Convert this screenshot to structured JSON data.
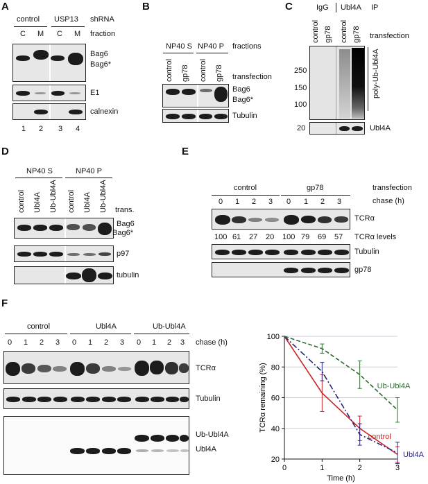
{
  "panelA": {
    "label": "A",
    "groups": [
      "control",
      "USP13"
    ],
    "groups_caption": "shRNA",
    "fractions": [
      "C",
      "M",
      "C",
      "M"
    ],
    "fractions_caption": "fraction",
    "bands": [
      "Bag6",
      "Bag6*"
    ],
    "rows": [
      "E1",
      "calnexin"
    ],
    "lanes": [
      "1",
      "2",
      "3",
      "4"
    ]
  },
  "panelB": {
    "label": "B",
    "groups": [
      "NP40 S",
      "NP40 P"
    ],
    "groups_caption": "fractions",
    "lanes": [
      "control",
      "gp78",
      "control",
      "gp78"
    ],
    "lanes_caption": "transfection",
    "bands": [
      "Bag6",
      "Bag6*"
    ],
    "rows": [
      "Tubulin"
    ]
  },
  "panelC": {
    "label": "C",
    "groups": [
      "IgG",
      "Ubl4A"
    ],
    "groups_caption": "IP",
    "lanes": [
      "control",
      "gp78",
      "control",
      "gp78"
    ],
    "lanes_caption": "transfection",
    "smear_label": "poly-Ub-Ubl4A",
    "mw": [
      "250",
      "150",
      "100",
      "20"
    ],
    "rows": [
      "Ubl4A"
    ]
  },
  "panelD": {
    "label": "D",
    "groups": [
      "NP40 S",
      "NP40 P"
    ],
    "lanes": [
      "control",
      "Ubl4A",
      "Ub-Ubl4A",
      "control",
      "Ubl4A",
      "Ub-Ubl4A"
    ],
    "lanes_caption": "trans.",
    "bands": [
      "Bag6",
      "Bag6*"
    ],
    "rows": [
      "p97",
      "tubulin"
    ]
  },
  "panelE": {
    "label": "E",
    "groups": [
      "control",
      "gp78"
    ],
    "groups_caption": "transfection",
    "chase_caption": "chase (h)",
    "chase": [
      "0",
      "1",
      "2",
      "3",
      "0",
      "1",
      "2",
      "3"
    ],
    "rows": [
      "TCRα",
      "Tubulin",
      "gp78"
    ],
    "levels_caption": "TCRα levels",
    "levels": [
      100,
      61,
      27,
      20,
      100,
      79,
      69,
      57
    ]
  },
  "panelF": {
    "label": "F",
    "groups": [
      "control",
      "Ubl4A",
      "Ub-Ubl4A"
    ],
    "chase_caption": "chase (h)",
    "chase": [
      "0",
      "1",
      "2",
      "3",
      "0",
      "1",
      "2",
      "3",
      "0",
      "1",
      "2",
      "3"
    ],
    "rows": [
      "TCRα",
      "Tubulin",
      "Ub-Ubl4A",
      "Ubl4A"
    ]
  },
  "chart_data": {
    "type": "line",
    "x": [
      0,
      1,
      2,
      3
    ],
    "xlabel": "Time (h)",
    "ylabel": "TCRα remaining (%)",
    "xlim": [
      0,
      3
    ],
    "ylim": [
      20,
      100
    ],
    "xticks": [
      "0",
      "1",
      "2",
      "3"
    ],
    "yticks": [
      "20",
      "40",
      "60",
      "80",
      "100"
    ],
    "grid": "horizontal",
    "legend": "inline-labels",
    "series": [
      {
        "name": "control",
        "values": [
          100,
          63,
          40,
          23
        ],
        "err": [
          0,
          12,
          8,
          5
        ],
        "color": "#cc2222",
        "dash": "solid"
      },
      {
        "name": "Ubl4A",
        "values": [
          100,
          77,
          36,
          24
        ],
        "err": [
          0,
          6,
          7,
          7
        ],
        "color": "#24247a",
        "dash": "dashdot"
      },
      {
        "name": "Ub-Ubl4A",
        "values": [
          100,
          92,
          75,
          52
        ],
        "err": [
          0,
          3,
          9,
          8
        ],
        "color": "#2e6b2e",
        "dash": "dashed"
      }
    ]
  }
}
